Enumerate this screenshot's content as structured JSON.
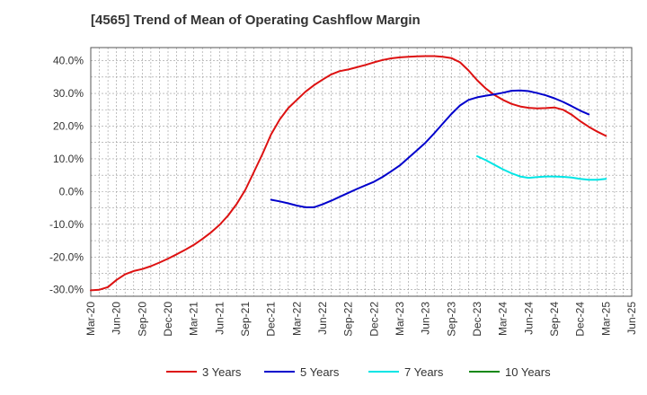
{
  "chart_data": {
    "type": "line",
    "title": "[4565]  Trend of Mean of Operating Cashflow Margin",
    "xlabel": "",
    "ylabel": "",
    "ylim": [
      -32,
      44
    ],
    "yticks": [
      -30,
      -20,
      -10,
      0,
      10,
      20,
      30,
      40
    ],
    "ytick_labels": [
      "-30.0%",
      "-20.0%",
      "-10.0%",
      "0.0%",
      "10.0%",
      "20.0%",
      "30.0%",
      "40.0%"
    ],
    "xlim": [
      "2020-03",
      "2025-06"
    ],
    "xticks": [
      "2020-03",
      "2020-06",
      "2020-09",
      "2020-12",
      "2021-03",
      "2021-06",
      "2021-09",
      "2021-12",
      "2022-03",
      "2022-06",
      "2022-09",
      "2022-12",
      "2023-03",
      "2023-06",
      "2023-09",
      "2023-12",
      "2024-03",
      "2024-06",
      "2024-09",
      "2024-12",
      "2025-03",
      "2025-06"
    ],
    "xtick_labels": [
      "Mar-20",
      "Jun-20",
      "Sep-20",
      "Dec-20",
      "Mar-21",
      "Jun-21",
      "Sep-21",
      "Dec-21",
      "Mar-22",
      "Jun-22",
      "Sep-22",
      "Dec-22",
      "Mar-23",
      "Jun-23",
      "Sep-23",
      "Dec-23",
      "Mar-24",
      "Jun-24",
      "Sep-24",
      "Dec-24",
      "Mar-25",
      "Jun-25"
    ],
    "grid": true,
    "legend_position": "bottom",
    "series": [
      {
        "name": "3 Years",
        "color": "#dd1111",
        "x": [
          "2020-03",
          "2020-04",
          "2020-05",
          "2020-06",
          "2020-07",
          "2020-08",
          "2020-09",
          "2020-10",
          "2020-11",
          "2020-12",
          "2021-01",
          "2021-02",
          "2021-03",
          "2021-04",
          "2021-05",
          "2021-06",
          "2021-07",
          "2021-08",
          "2021-09",
          "2021-10",
          "2021-11",
          "2021-12",
          "2022-01",
          "2022-02",
          "2022-03",
          "2022-04",
          "2022-05",
          "2022-06",
          "2022-07",
          "2022-08",
          "2022-09",
          "2022-10",
          "2022-11",
          "2022-12",
          "2023-01",
          "2023-02",
          "2023-03",
          "2023-04",
          "2023-05",
          "2023-06",
          "2023-07",
          "2023-08",
          "2023-09",
          "2023-10",
          "2023-11",
          "2023-12",
          "2024-01",
          "2024-02",
          "2024-03",
          "2024-04",
          "2024-05",
          "2024-06",
          "2024-07",
          "2024-08",
          "2024-09",
          "2024-10",
          "2024-11",
          "2024-12",
          "2025-01",
          "2025-02",
          "2025-03"
        ],
        "y": [
          -30.2,
          -30.0,
          -29.2,
          -27.0,
          -25.3,
          -24.3,
          -23.7,
          -22.8,
          -21.7,
          -20.5,
          -19.2,
          -17.8,
          -16.3,
          -14.5,
          -12.5,
          -10.2,
          -7.3,
          -3.8,
          0.5,
          6.0,
          11.5,
          17.5,
          22.0,
          25.5,
          28.0,
          30.5,
          32.5,
          34.2,
          35.8,
          36.8,
          37.3,
          38.0,
          38.7,
          39.5,
          40.2,
          40.7,
          41.0,
          41.2,
          41.3,
          41.4,
          41.4,
          41.2,
          40.8,
          39.5,
          37.0,
          34.0,
          31.5,
          29.5,
          28.0,
          26.8,
          26.0,
          25.6,
          25.4,
          25.5,
          25.7,
          25.0,
          23.5,
          21.5,
          19.8,
          18.3,
          17.0
        ]
      },
      {
        "name": "5 Years",
        "color": "#0000cc",
        "x": [
          "2021-12",
          "2022-01",
          "2022-02",
          "2022-03",
          "2022-04",
          "2022-05",
          "2022-06",
          "2022-07",
          "2022-08",
          "2022-09",
          "2022-10",
          "2022-11",
          "2022-12",
          "2023-01",
          "2023-02",
          "2023-03",
          "2023-04",
          "2023-05",
          "2023-06",
          "2023-07",
          "2023-08",
          "2023-09",
          "2023-10",
          "2023-11",
          "2023-12",
          "2024-01",
          "2024-02",
          "2024-03",
          "2024-04",
          "2024-05",
          "2024-06",
          "2024-07",
          "2024-08",
          "2024-09",
          "2024-10",
          "2024-11",
          "2024-12",
          "2025-01",
          "2025-02",
          "2025-03"
        ],
        "y": [
          -2.5,
          -3.0,
          -3.6,
          -4.3,
          -4.8,
          -4.8,
          -3.9,
          -2.8,
          -1.6,
          -0.4,
          0.8,
          1.9,
          3.0,
          4.5,
          6.2,
          8.0,
          10.3,
          12.6,
          15.0,
          17.8,
          20.8,
          23.7,
          26.3,
          28.0,
          28.8,
          29.3,
          29.7,
          30.2,
          30.8,
          30.9,
          30.7,
          30.1,
          29.4,
          28.5,
          27.4,
          26.1,
          24.7,
          23.6,
          null,
          null
        ]
      },
      {
        "name": "7 Years",
        "color": "#00e5e5",
        "x": [
          "2023-12",
          "2024-01",
          "2024-02",
          "2024-03",
          "2024-04",
          "2024-05",
          "2024-06",
          "2024-07",
          "2024-08",
          "2024-09",
          "2024-10",
          "2024-11",
          "2024-12",
          "2025-01",
          "2025-02",
          "2025-03"
        ],
        "y": [
          10.8,
          9.6,
          8.2,
          6.8,
          5.6,
          4.6,
          4.2,
          4.4,
          4.6,
          4.6,
          4.5,
          4.3,
          3.9,
          3.6,
          3.6,
          3.9
        ]
      },
      {
        "name": "10 Years",
        "color": "#118811",
        "x": [],
        "y": []
      }
    ]
  }
}
